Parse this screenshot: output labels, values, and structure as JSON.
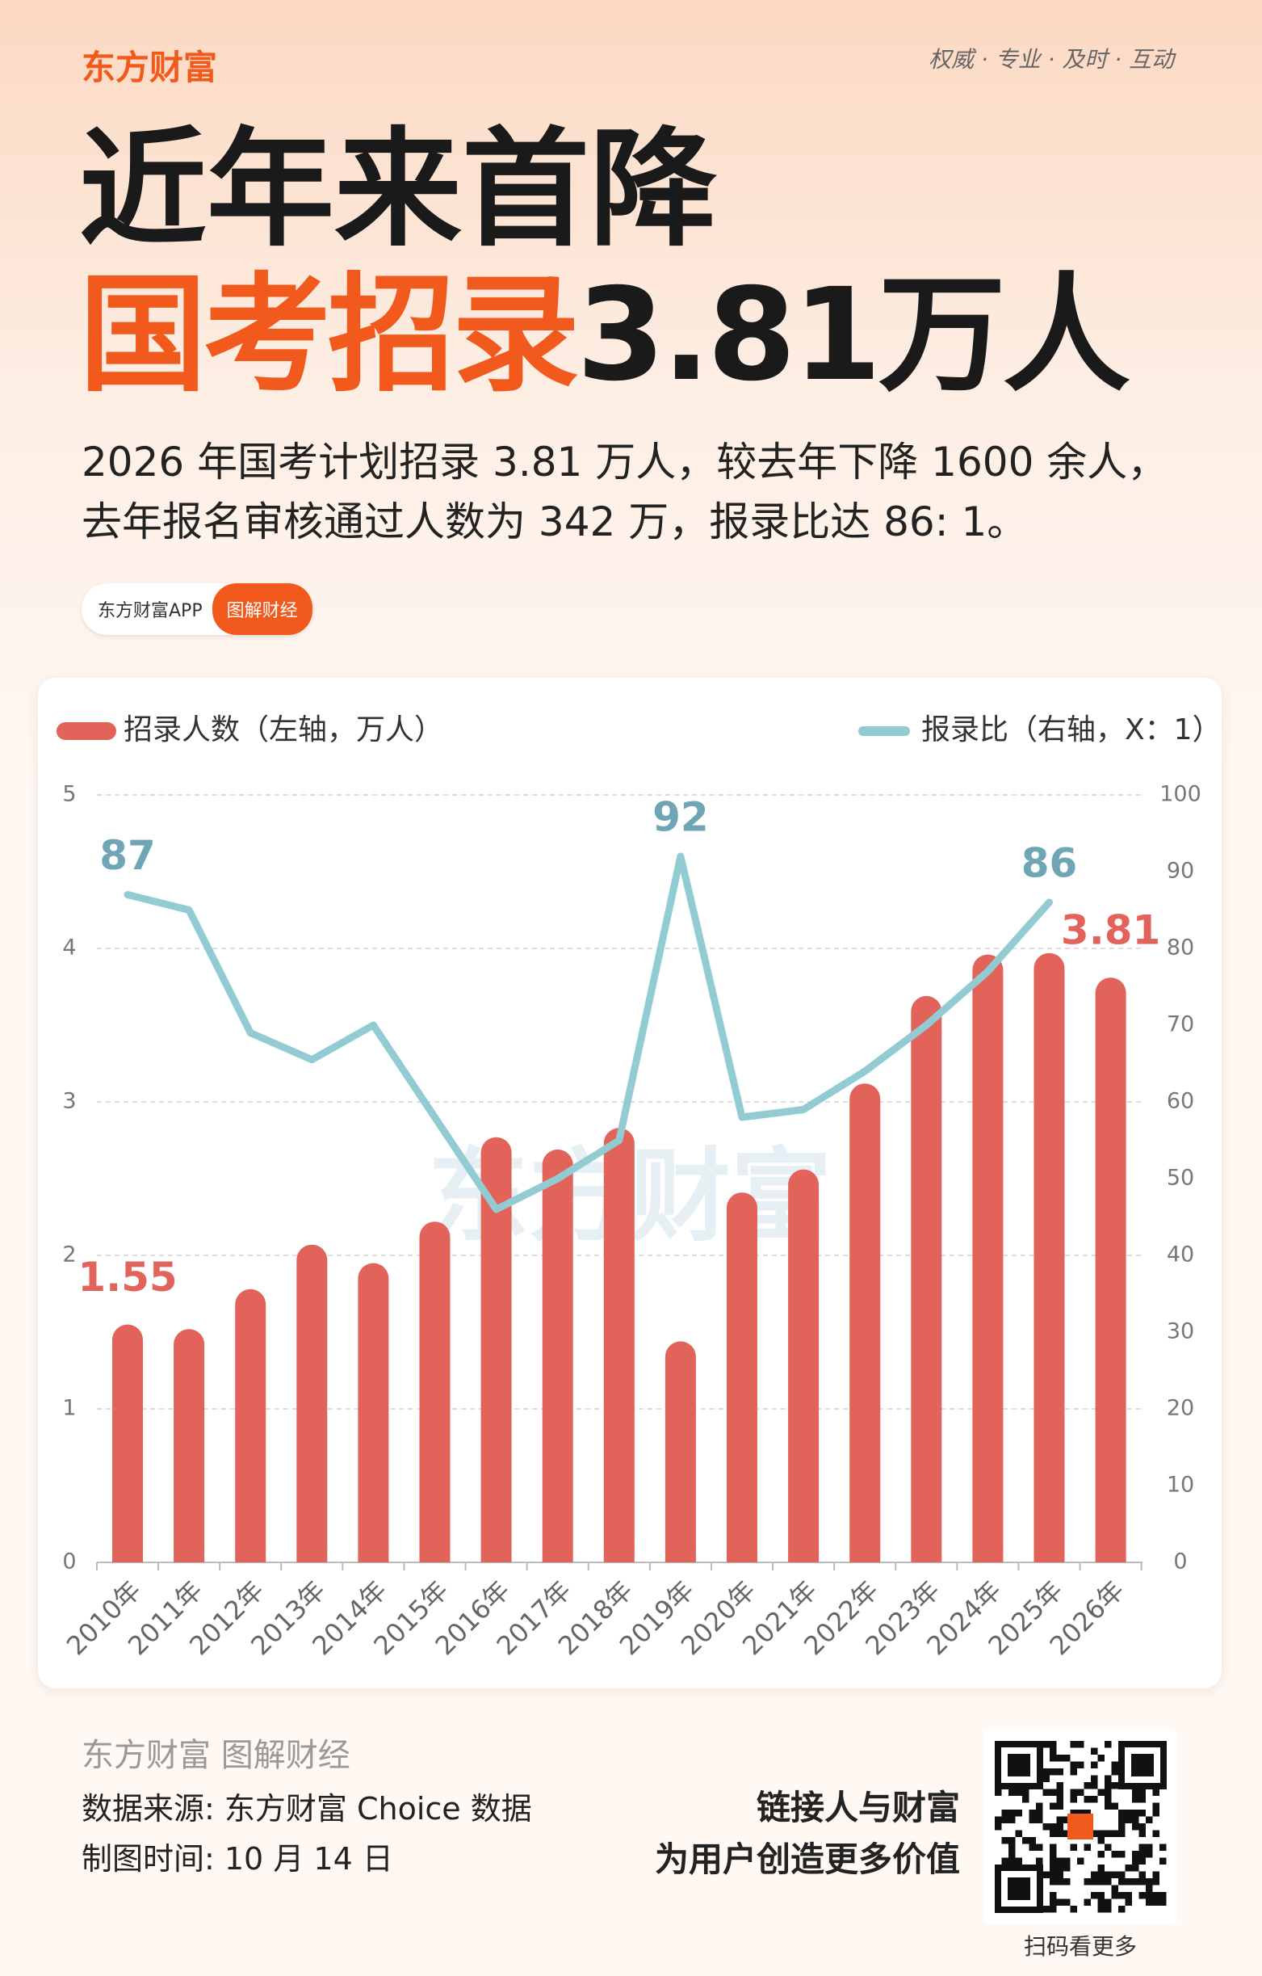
{
  "header": {
    "brand": "东方财富",
    "slogan": "权威 · 专业 · 及时 · 互动",
    "title_line1": "近年来首降",
    "title_highlight": "国考招录",
    "title_rest": "3.81万人",
    "summary": "2026 年国考计划招录 3.81 万人，较去年下降 1600 余人，去年报名审核通过人数为 342 万，报录比达 86: 1。",
    "tag_app": "东方财富APP",
    "tag_button": "图解财经"
  },
  "chart_data": {
    "type": "combo",
    "watermark": "东方财富",
    "categories": [
      "2010年",
      "2011年",
      "2012年",
      "2013年",
      "2014年",
      "2015年",
      "2016年",
      "2017年",
      "2018年",
      "2019年",
      "2020年",
      "2021年",
      "2022年",
      "2023年",
      "2024年",
      "2025年",
      "2026年"
    ],
    "series": [
      {
        "name": "招录人数（左轴，万人）",
        "type": "bar",
        "color": "#e2635a",
        "values": [
          1.55,
          1.52,
          1.78,
          2.07,
          1.95,
          2.22,
          2.77,
          2.69,
          2.83,
          1.44,
          2.41,
          2.56,
          3.12,
          3.69,
          3.96,
          3.97,
          3.81
        ],
        "value_labels": [
          "1.55",
          null,
          null,
          null,
          null,
          null,
          null,
          null,
          null,
          null,
          null,
          null,
          null,
          null,
          null,
          null,
          "3.81"
        ]
      },
      {
        "name": "报录比（右轴，X：1）",
        "type": "line",
        "axis": "y2",
        "color": "#93cbd3",
        "values": [
          87,
          85,
          69,
          65.5,
          70,
          58,
          46,
          50,
          55,
          92,
          58,
          59,
          64,
          70,
          77,
          86,
          null
        ],
        "value_labels": [
          "87",
          null,
          null,
          null,
          null,
          null,
          null,
          null,
          null,
          "92",
          null,
          null,
          null,
          null,
          null,
          "86",
          null
        ]
      }
    ],
    "ylim": [
      0,
      5
    ],
    "yticks": [
      0,
      1,
      2,
      3,
      4,
      5
    ],
    "y2lim": [
      0,
      100
    ],
    "y2ticks": [
      0,
      10,
      20,
      30,
      40,
      50,
      60,
      70,
      80,
      90,
      100
    ],
    "grid": true
  },
  "footer": {
    "logo": "东方财富 图解财经",
    "source": "数据来源: 东方财富 Choice 数据",
    "date": "制图时间: 10 月 14 日",
    "slogan1": "链接人与财富",
    "slogan2": "为用户创造更多价值",
    "qr_caption": "扫码看更多"
  }
}
